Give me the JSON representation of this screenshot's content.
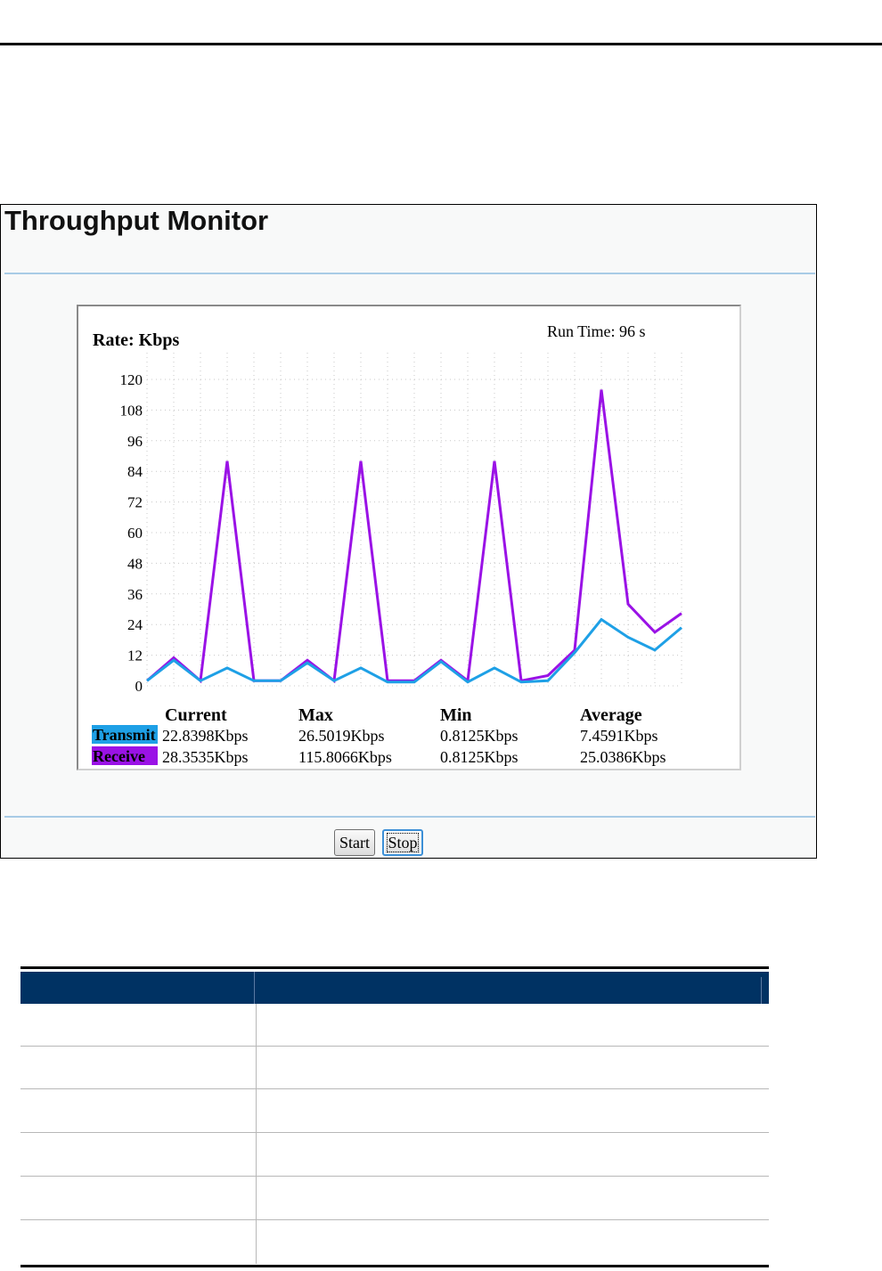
{
  "monitor": {
    "title": "Throughput Monitor",
    "rate_label": "Rate: Kbps",
    "run_time": "Run Time: 96 s",
    "buttons": {
      "start": "Start",
      "stop": "Stop"
    }
  },
  "stats": {
    "headers": [
      "Current",
      "Max",
      "Min",
      "Average"
    ],
    "rows": [
      {
        "name": "Transmit",
        "color": "#1ea0e6",
        "current": "22.8398Kbps",
        "max": "26.5019Kbps",
        "min": "0.8125Kbps",
        "average": "7.4591Kbps"
      },
      {
        "name": "Receive",
        "color": "#9a12e6",
        "current": "28.3535Kbps",
        "max": "115.8066Kbps",
        "min": "0.8125Kbps",
        "average": "25.0386Kbps"
      }
    ]
  },
  "chart_data": {
    "type": "line",
    "ylabel": "Rate: Kbps",
    "ylim": [
      0,
      120
    ],
    "yticks": [
      "120",
      "108",
      "96",
      "84",
      "72",
      "60",
      "48",
      "36",
      "24",
      "12",
      "0"
    ],
    "grid": true,
    "series": [
      {
        "name": "Transmit",
        "color": "#1ea0e6",
        "values": [
          2,
          10,
          2,
          7,
          2,
          2,
          9,
          2,
          7,
          1.5,
          1.5,
          9.5,
          1.5,
          7,
          1.5,
          2,
          13,
          26,
          19,
          14,
          22.8
        ]
      },
      {
        "name": "Receive",
        "color": "#9a12e6",
        "values": [
          2,
          11,
          2,
          88,
          2,
          2,
          10,
          2,
          88,
          2,
          2,
          10,
          2,
          88,
          2,
          4,
          14,
          116,
          32,
          21,
          28.4
        ]
      }
    ]
  }
}
